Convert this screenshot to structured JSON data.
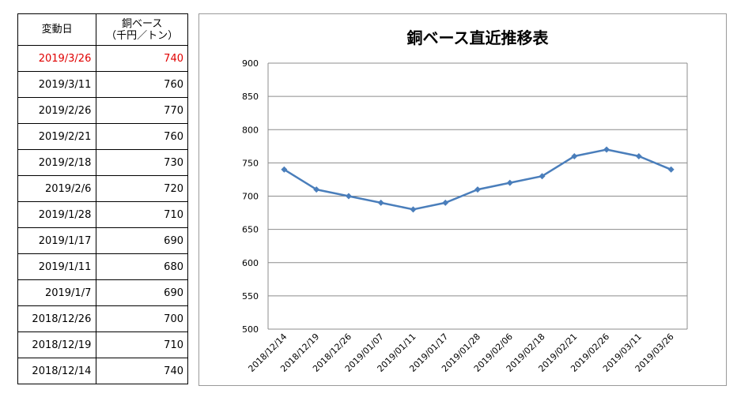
{
  "table": {
    "header_date": "変動日",
    "header_value_line1": "銅ベース",
    "header_value_line2": "（千円／トン）",
    "rows": [
      {
        "date": "2019/3/26",
        "value": "740",
        "highlight": true
      },
      {
        "date": "2019/3/11",
        "value": "760"
      },
      {
        "date": "2019/2/26",
        "value": "770"
      },
      {
        "date": "2019/2/21",
        "value": "760"
      },
      {
        "date": "2019/2/18",
        "value": "730"
      },
      {
        "date": "2019/2/6",
        "value": "720"
      },
      {
        "date": "2019/1/28",
        "value": "710"
      },
      {
        "date": "2019/1/17",
        "value": "690"
      },
      {
        "date": "2019/1/11",
        "value": "680"
      },
      {
        "date": "2019/1/7",
        "value": "690"
      },
      {
        "date": "2018/12/26",
        "value": "700"
      },
      {
        "date": "2018/12/19",
        "value": "710"
      },
      {
        "date": "2018/12/14",
        "value": "740"
      }
    ],
    "highlight_color": "#e00000"
  },
  "chart_data": {
    "type": "line",
    "title": "銅ベース直近推移表",
    "xlabel": "",
    "ylabel": "",
    "categories": [
      "2018/12/14",
      "2018/12/19",
      "2018/12/26",
      "2019/01/07",
      "2019/01/11",
      "2019/01/17",
      "2019/01/28",
      "2019/02/06",
      "2019/02/18",
      "2019/02/21",
      "2019/02/26",
      "2019/03/11",
      "2019/03/26"
    ],
    "series": [
      {
        "values": [
          740,
          710,
          700,
          690,
          680,
          690,
          710,
          720,
          730,
          760,
          770,
          760,
          740
        ]
      }
    ],
    "ylim": [
      500,
      900
    ],
    "yticks": [
      500,
      550,
      600,
      650,
      700,
      750,
      800,
      850,
      900
    ],
    "grid": true,
    "legend": "none",
    "line_color": "#4a7ebb",
    "marker": "diamond"
  }
}
